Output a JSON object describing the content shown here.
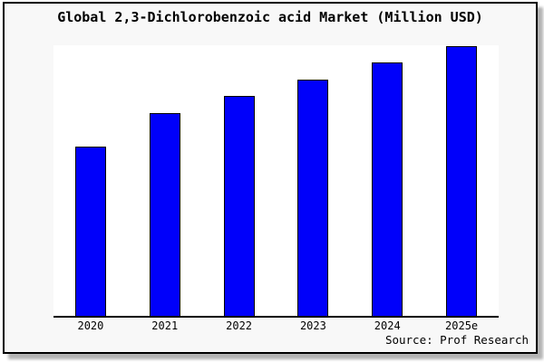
{
  "frame": {
    "background": "#f8f8f8",
    "border_color": "#000000",
    "shadow_color": "#b4b4b4"
  },
  "title": "Global 2,3-Dichlorobenzoic acid Market (Million USD)",
  "source": "Source: Prof Research",
  "chart_data": {
    "type": "bar",
    "title": "Global 2,3-Dichlorobenzoic acid Market (Million USD)",
    "categories": [
      "2020",
      "2021",
      "2022",
      "2023",
      "2024",
      "2025e"
    ],
    "values": [
      62.5,
      74.9,
      81.3,
      87.3,
      93.6,
      99.7
    ],
    "xlabel": "",
    "ylabel": "",
    "ylim": [
      0,
      100
    ],
    "y_axis_visible": false,
    "grid": false,
    "legend": false,
    "bar_color": "#0000fa",
    "bar_edge_color": "#000000",
    "plot_background": "#ffffff",
    "axis_line_color": "#000000",
    "value_note": "No y-axis scale or data labels shown; values estimated relative to plot height with 2025e bar reaching ~full height (indexed to 100)."
  }
}
